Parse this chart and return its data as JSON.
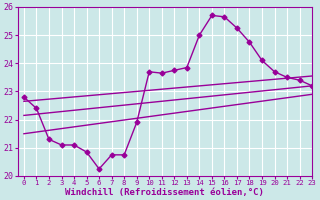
{
  "xlabel": "Windchill (Refroidissement éolien,°C)",
  "ylabel": "",
  "bg_color": "#cce8e8",
  "grid_color": "#ffffff",
  "line_color": "#990099",
  "xlim": [
    -0.5,
    23
  ],
  "ylim": [
    20,
    26
  ],
  "xticks": [
    0,
    1,
    2,
    3,
    4,
    5,
    6,
    7,
    8,
    9,
    10,
    11,
    12,
    13,
    14,
    15,
    16,
    17,
    18,
    19,
    20,
    21,
    22,
    23
  ],
  "yticks": [
    20,
    21,
    22,
    23,
    24,
    25,
    26
  ],
  "jagged_x": [
    0,
    1,
    2,
    3,
    4,
    5,
    6,
    7,
    8,
    9,
    10,
    11,
    12,
    13,
    14,
    15,
    16,
    17,
    18,
    19,
    20,
    21,
    22,
    23
  ],
  "jagged_y": [
    22.8,
    22.4,
    21.3,
    21.1,
    21.1,
    20.85,
    20.25,
    20.75,
    20.75,
    21.9,
    23.7,
    23.65,
    23.75,
    23.85,
    25.0,
    25.7,
    25.65,
    25.25,
    24.75,
    24.1,
    23.7,
    23.5,
    23.4,
    23.2
  ],
  "upper_line_x": [
    0,
    23
  ],
  "upper_line_y": [
    22.65,
    23.55
  ],
  "middle_line_x": [
    0,
    23
  ],
  "middle_line_y": [
    22.15,
    23.2
  ],
  "lower_line_x": [
    0,
    23
  ],
  "lower_line_y": [
    21.5,
    22.9
  ],
  "marker": "D",
  "markersize": 2.5,
  "linewidth": 1.0,
  "tick_labelsize": 6,
  "xlabel_fontsize": 6.5
}
